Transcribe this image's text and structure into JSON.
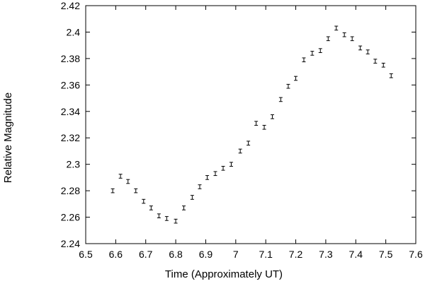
{
  "chart_data": {
    "type": "scatter",
    "xlabel": "Time (Approximately UT)",
    "ylabel": "Relative Magnitude",
    "xlim": [
      6.5,
      7.6
    ],
    "ylim": [
      2.24,
      2.42
    ],
    "grid": false,
    "legend": "none",
    "x_ticks": [
      "6.5",
      "6.6",
      "6.7",
      "6.8",
      "6.9",
      "7",
      "7.1",
      "7.2",
      "7.3",
      "7.4",
      "7.5",
      "7.6"
    ],
    "y_ticks": [
      "2.24",
      "2.26",
      "2.28",
      "2.3",
      "2.32",
      "2.34",
      "2.36",
      "2.38",
      "2.4",
      "2.42"
    ],
    "marker": "error-bar",
    "color": "#000000",
    "points": [
      {
        "x": 6.59,
        "y": 2.28,
        "err": 0.0015
      },
      {
        "x": 6.616,
        "y": 2.291,
        "err": 0.0015
      },
      {
        "x": 6.641,
        "y": 2.287,
        "err": 0.0015
      },
      {
        "x": 6.667,
        "y": 2.28,
        "err": 0.0015
      },
      {
        "x": 6.693,
        "y": 2.272,
        "err": 0.0015
      },
      {
        "x": 6.718,
        "y": 2.267,
        "err": 0.0015
      },
      {
        "x": 6.744,
        "y": 2.261,
        "err": 0.0015
      },
      {
        "x": 6.77,
        "y": 2.259,
        "err": 0.0015
      },
      {
        "x": 6.8,
        "y": 2.257,
        "err": 0.0015
      },
      {
        "x": 6.827,
        "y": 2.267,
        "err": 0.0015
      },
      {
        "x": 6.855,
        "y": 2.275,
        "err": 0.0015
      },
      {
        "x": 6.88,
        "y": 2.283,
        "err": 0.0015
      },
      {
        "x": 6.905,
        "y": 2.29,
        "err": 0.0015
      },
      {
        "x": 6.932,
        "y": 2.293,
        "err": 0.0015
      },
      {
        "x": 6.958,
        "y": 2.297,
        "err": 0.0015
      },
      {
        "x": 6.985,
        "y": 2.3,
        "err": 0.0015
      },
      {
        "x": 7.015,
        "y": 2.31,
        "err": 0.0015
      },
      {
        "x": 7.042,
        "y": 2.316,
        "err": 0.0015
      },
      {
        "x": 7.068,
        "y": 2.331,
        "err": 0.0015
      },
      {
        "x": 7.095,
        "y": 2.328,
        "err": 0.0015
      },
      {
        "x": 7.122,
        "y": 2.336,
        "err": 0.0015
      },
      {
        "x": 7.15,
        "y": 2.349,
        "err": 0.0015
      },
      {
        "x": 7.175,
        "y": 2.359,
        "err": 0.0015
      },
      {
        "x": 7.2,
        "y": 2.365,
        "err": 0.0015
      },
      {
        "x": 7.227,
        "y": 2.379,
        "err": 0.0015
      },
      {
        "x": 7.255,
        "y": 2.384,
        "err": 0.0015
      },
      {
        "x": 7.282,
        "y": 2.386,
        "err": 0.0015
      },
      {
        "x": 7.308,
        "y": 2.395,
        "err": 0.0015
      },
      {
        "x": 7.335,
        "y": 2.403,
        "err": 0.0015
      },
      {
        "x": 7.362,
        "y": 2.398,
        "err": 0.0015
      },
      {
        "x": 7.388,
        "y": 2.395,
        "err": 0.0015
      },
      {
        "x": 7.415,
        "y": 2.388,
        "err": 0.0015
      },
      {
        "x": 7.44,
        "y": 2.385,
        "err": 0.0015
      },
      {
        "x": 7.465,
        "y": 2.378,
        "err": 0.0015
      },
      {
        "x": 7.492,
        "y": 2.375,
        "err": 0.0015
      },
      {
        "x": 7.518,
        "y": 2.367,
        "err": 0.0015
      }
    ]
  }
}
